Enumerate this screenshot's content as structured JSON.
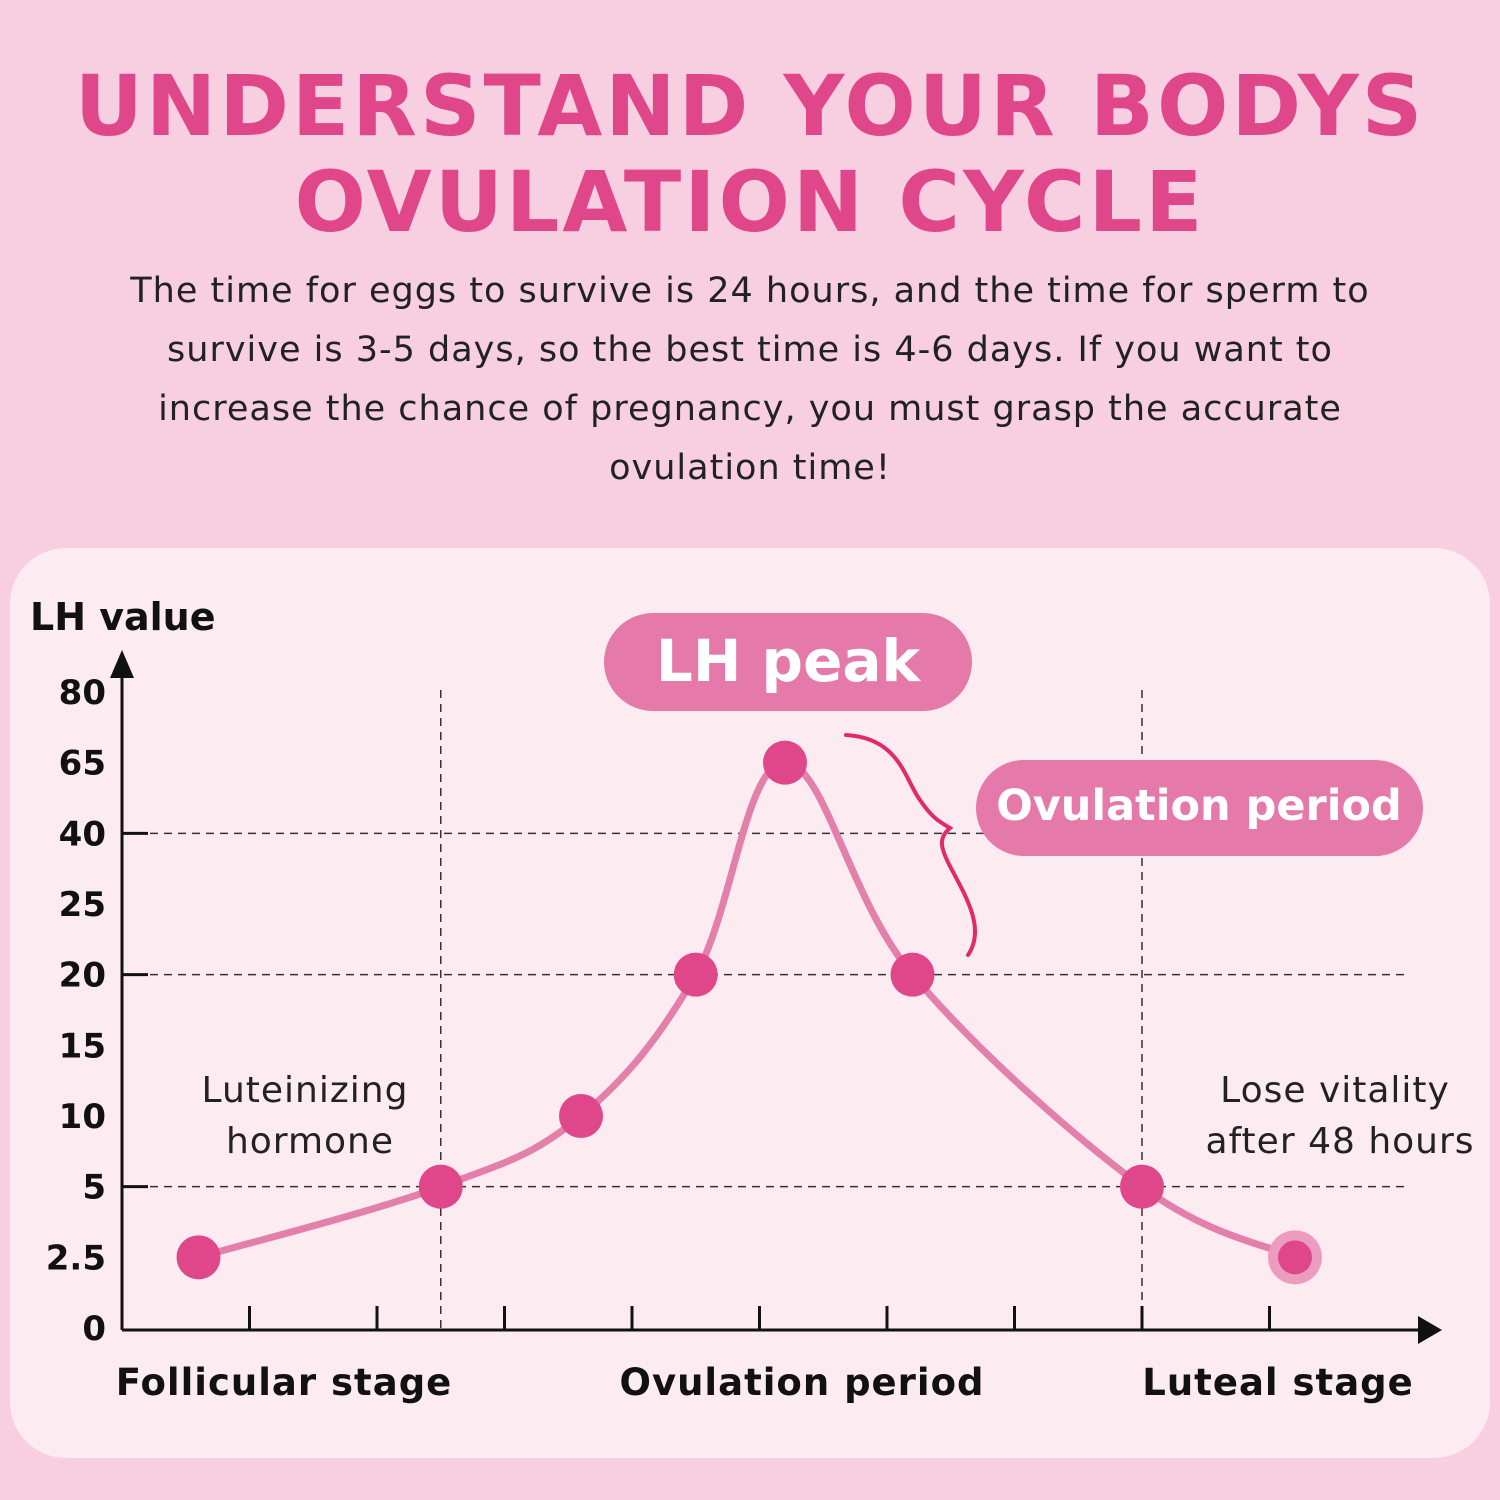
{
  "header": {
    "title_line1": "UNDERSTAND YOUR BODYS",
    "title_line2": "OVULATION CYCLE",
    "description": "The time for eggs to survive is 24 hours, and the time for sperm to survive is 3-5 days, so the best time is 4-6 days. If you want to increase the chance of pregnancy, you must grasp the accurate ovulation time!"
  },
  "colors": {
    "background": "#f7cfe0",
    "title": "#e0468a",
    "card": "#fdebf2",
    "curve": "#e37fab",
    "point": "#e0468a",
    "pill": "#e57aaa",
    "brace": "#e02a6a"
  },
  "chart_data": {
    "type": "line",
    "ylabel": "LH value",
    "y_ticks": [
      "80",
      "65",
      "40",
      "25",
      "20",
      "15",
      "10",
      "5",
      "2.5",
      "0"
    ],
    "y_scale": "categorical ordinal (labels evenly spaced)",
    "x_stage_labels": [
      "Follicular stage",
      "Ovulation period",
      "Luteal stage"
    ],
    "x_ticks_count": 9,
    "series": [
      {
        "values": [
          2.5,
          5,
          10,
          20,
          65,
          20,
          5,
          2.5
        ],
        "x_positions": [
          0.6,
          2.5,
          3.6,
          4.5,
          5.2,
          6.2,
          8.0,
          9.2
        ]
      }
    ],
    "gridlines_y": [
      40,
      20,
      5
    ],
    "annotations": {
      "peak_label": "LH peak",
      "ovulation_label": "Ovulation period",
      "left_note_line1": "Luteinizing",
      "left_note_line2": "hormone",
      "right_note_line1": "Lose vitality",
      "right_note_line2": "after 48 hours"
    }
  }
}
